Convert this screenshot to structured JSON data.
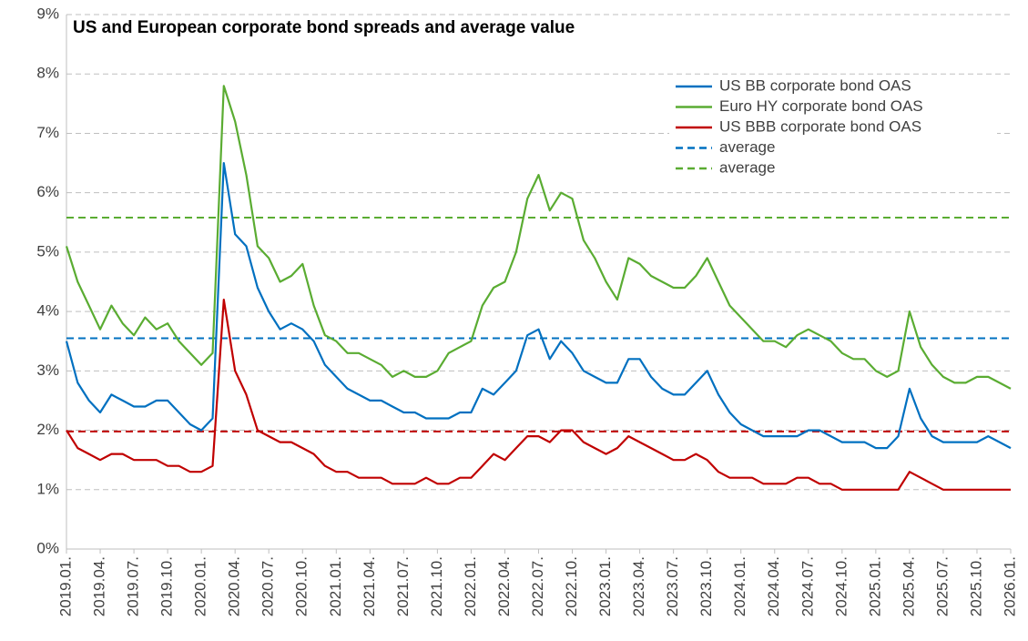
{
  "chart_data": {
    "type": "line",
    "title": "US and European corporate bond spreads and average value",
    "x": [
      "2019.01.",
      "2019.02.",
      "2019.03.",
      "2019.04.",
      "2019.05.",
      "2019.06.",
      "2019.07.",
      "2019.08.",
      "2019.09.",
      "2019.10.",
      "2019.11.",
      "2019.12.",
      "2020.01.",
      "2020.02.",
      "2020.03.",
      "2020.04.",
      "2020.05.",
      "2020.06.",
      "2020.07.",
      "2020.08.",
      "2020.09.",
      "2020.10.",
      "2020.11.",
      "2020.12.",
      "2021.01.",
      "2021.02.",
      "2021.03.",
      "2021.04.",
      "2021.05.",
      "2021.06.",
      "2021.07.",
      "2021.08.",
      "2021.09.",
      "2021.10.",
      "2021.11.",
      "2021.12.",
      "2022.01.",
      "2022.02.",
      "2022.03.",
      "2022.04.",
      "2022.05.",
      "2022.06.",
      "2022.07.",
      "2022.08.",
      "2022.09.",
      "2022.10.",
      "2022.11.",
      "2022.12.",
      "2023.01.",
      "2023.02.",
      "2023.03.",
      "2023.04.",
      "2023.05.",
      "2023.06.",
      "2023.07.",
      "2023.08.",
      "2023.09.",
      "2023.10.",
      "2023.11.",
      "2023.12.",
      "2024.01.",
      "2024.02.",
      "2024.03.",
      "2024.04.",
      "2024.05.",
      "2024.06.",
      "2024.07.",
      "2024.08.",
      "2024.09.",
      "2024.10.",
      "2024.11.",
      "2024.12.",
      "2025.01.",
      "2025.02.",
      "2025.03.",
      "2025.04.",
      "2025.05.",
      "2025.06.",
      "2025.07.",
      "2025.08.",
      "2025.09.",
      "2025.10.",
      "2025.11.",
      "2025.12.",
      "2026.01."
    ],
    "xticks": [
      "2019.01.",
      "2019.04.",
      "2019.07.",
      "2019.10.",
      "2020.01.",
      "2020.04.",
      "2020.07.",
      "2020.10.",
      "2021.01.",
      "2021.04.",
      "2021.07.",
      "2021.10.",
      "2022.01.",
      "2022.04.",
      "2022.07.",
      "2022.10.",
      "2023.01.",
      "2023.04.",
      "2023.07.",
      "2023.10.",
      "2024.01.",
      "2024.04.",
      "2024.07.",
      "2024.10.",
      "2025.01.",
      "2025.04.",
      "2025.07.",
      "2025.10.",
      "2026.01."
    ],
    "series": [
      {
        "name": "US BB corporate bond OAS",
        "color": "#0070c0",
        "values": [
          3.5,
          2.8,
          2.5,
          2.3,
          2.6,
          2.5,
          2.4,
          2.4,
          2.5,
          2.5,
          2.3,
          2.1,
          2.0,
          2.2,
          6.5,
          5.3,
          5.1,
          4.4,
          4.0,
          3.7,
          3.8,
          3.7,
          3.5,
          3.1,
          2.9,
          2.7,
          2.6,
          2.5,
          2.5,
          2.4,
          2.3,
          2.3,
          2.2,
          2.2,
          2.2,
          2.3,
          2.3,
          2.7,
          2.6,
          2.8,
          3.0,
          3.6,
          3.7,
          3.2,
          3.5,
          3.3,
          3.0,
          2.9,
          2.8,
          2.8,
          3.2,
          3.2,
          2.9,
          2.7,
          2.6,
          2.6,
          2.8,
          3.0,
          2.6,
          2.3,
          2.1,
          2.0,
          1.9,
          1.9,
          1.9,
          1.9,
          2.0,
          2.0,
          1.9,
          1.8,
          1.8,
          1.8,
          1.7,
          1.7,
          1.9,
          2.7,
          2.2,
          1.9,
          1.8,
          1.8,
          1.8,
          1.8,
          1.9,
          1.8,
          1.7
        ]
      },
      {
        "name": "Euro HY corporate bond OAS",
        "color": "#5aac32",
        "values": [
          5.1,
          4.5,
          4.1,
          3.7,
          4.1,
          3.8,
          3.6,
          3.9,
          3.7,
          3.8,
          3.5,
          3.3,
          3.1,
          3.3,
          7.8,
          7.2,
          6.3,
          5.1,
          4.9,
          4.5,
          4.6,
          4.8,
          4.1,
          3.6,
          3.5,
          3.3,
          3.3,
          3.2,
          3.1,
          2.9,
          3.0,
          2.9,
          2.9,
          3.0,
          3.3,
          3.4,
          3.5,
          4.1,
          4.4,
          4.5,
          5.0,
          5.9,
          6.3,
          5.7,
          6.0,
          5.9,
          5.2,
          4.9,
          4.5,
          4.2,
          4.9,
          4.8,
          4.6,
          4.5,
          4.4,
          4.4,
          4.6,
          4.9,
          4.5,
          4.1,
          3.9,
          3.7,
          3.5,
          3.5,
          3.4,
          3.6,
          3.7,
          3.6,
          3.5,
          3.3,
          3.2,
          3.2,
          3.0,
          2.9,
          3.0,
          4.0,
          3.4,
          3.1,
          2.9,
          2.8,
          2.8,
          2.9,
          2.9,
          2.8,
          2.7
        ]
      },
      {
        "name": "US BBB corporate bond OAS",
        "color": "#c00000",
        "values": [
          2.0,
          1.7,
          1.6,
          1.5,
          1.6,
          1.6,
          1.5,
          1.5,
          1.5,
          1.4,
          1.4,
          1.3,
          1.3,
          1.4,
          4.2,
          3.0,
          2.6,
          2.0,
          1.9,
          1.8,
          1.8,
          1.7,
          1.6,
          1.4,
          1.3,
          1.3,
          1.2,
          1.2,
          1.2,
          1.1,
          1.1,
          1.1,
          1.2,
          1.1,
          1.1,
          1.2,
          1.2,
          1.4,
          1.6,
          1.5,
          1.7,
          1.9,
          1.9,
          1.8,
          2.0,
          2.0,
          1.8,
          1.7,
          1.6,
          1.7,
          1.9,
          1.8,
          1.7,
          1.6,
          1.5,
          1.5,
          1.6,
          1.5,
          1.3,
          1.2,
          1.2,
          1.2,
          1.1,
          1.1,
          1.1,
          1.2,
          1.2,
          1.1,
          1.1,
          1.0,
          1.0,
          1.0,
          1.0,
          1.0,
          1.0,
          1.3,
          1.2,
          1.1,
          1.0,
          1.0,
          1.0,
          1.0,
          1.0,
          1.0,
          1.0
        ]
      }
    ],
    "averages": [
      {
        "name": "average",
        "color": "#0070c0",
        "value": 3.55
      },
      {
        "name": "average",
        "color": "#5aac32",
        "value": 5.58
      },
      {
        "color": "#c00000",
        "value": 1.98
      }
    ],
    "ylim": [
      0,
      9
    ],
    "yticks": [
      {
        "value": 0,
        "label": "0%"
      },
      {
        "value": 1,
        "label": "1%"
      },
      {
        "value": 2,
        "label": "2%"
      },
      {
        "value": 3,
        "label": "3%"
      },
      {
        "value": 4,
        "label": "4%"
      },
      {
        "value": 5,
        "label": "5%"
      },
      {
        "value": 6,
        "label": "6%"
      },
      {
        "value": 7,
        "label": "7%"
      },
      {
        "value": 8,
        "label": "8%"
      },
      {
        "value": 9,
        "label": "9%"
      }
    ],
    "grid": true
  }
}
